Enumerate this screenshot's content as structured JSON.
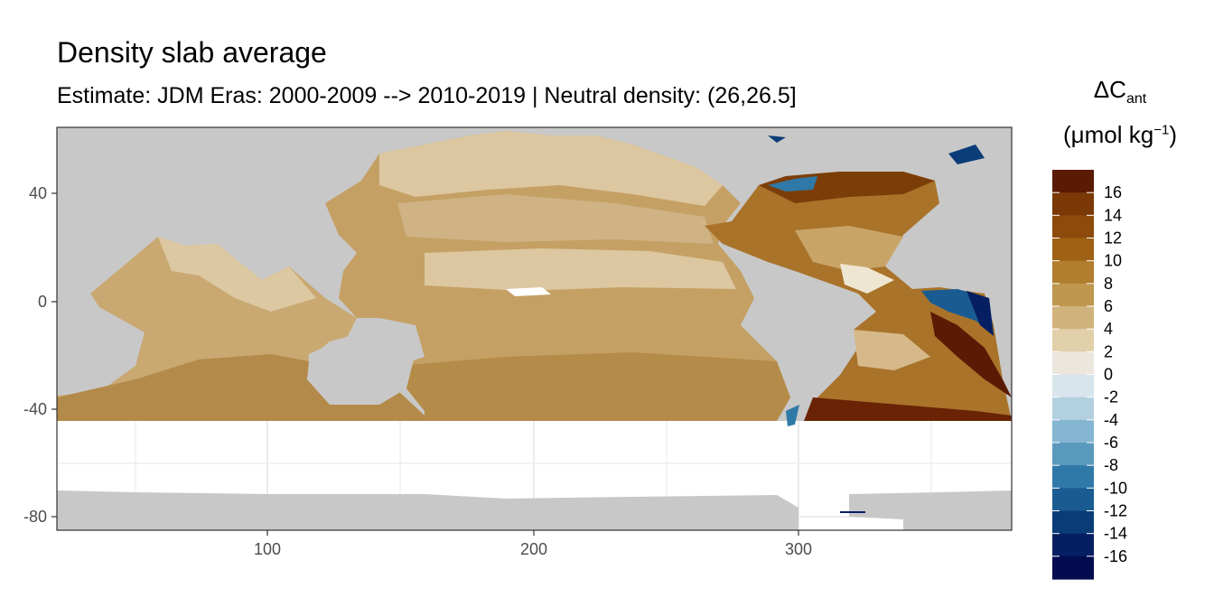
{
  "title": "Density slab average",
  "subtitle": "Estimate: JDM Eras: 2000-2009 --> 2010-2019 | Neutral density: (26,26.5]",
  "legend": {
    "symbol": "ΔC",
    "symbol_sub": "ant",
    "unit_open": "(μmol kg",
    "unit_sup": "−1",
    "unit_close": ")",
    "labels": [
      "16",
      "14",
      "12",
      "10",
      "8",
      "6",
      "4",
      "2",
      "0",
      "-2",
      "-4",
      "-6",
      "-8",
      "-10",
      "-12",
      "-14",
      "-16"
    ],
    "colors": [
      "#5a1a03",
      "#7a3806",
      "#8d4a0b",
      "#9f6214",
      "#b07e2e",
      "#bf974e",
      "#d0b27c",
      "#e2d0ab",
      "#ece7dd",
      "#d8e5ec",
      "#b3d0e0",
      "#85b6d1",
      "#5999bd",
      "#2f79a8",
      "#1a5c92",
      "#0a3c78",
      "#061f63",
      "#020c4f"
    ]
  },
  "axes": {
    "x_ticks": [
      "100",
      "200",
      "300"
    ],
    "y_ticks": [
      "40",
      "0",
      "-40",
      "-80"
    ]
  },
  "map_colors": {
    "land": "#c8c8c8",
    "panel_bg": "#ffffff",
    "grid": "#ebebeb",
    "border": "#333333"
  }
}
